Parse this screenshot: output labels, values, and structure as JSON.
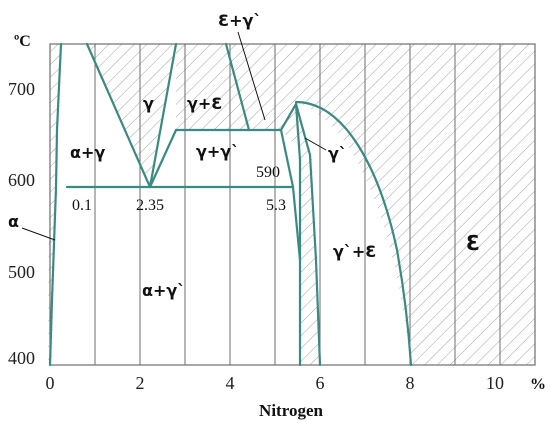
{
  "axes": {
    "y_unit": "ºC",
    "y_ticks": [
      "400",
      "500",
      "600",
      "700"
    ],
    "x_ticks": [
      "0",
      "2",
      "4",
      "6",
      "8",
      "10"
    ],
    "x_unit": "%",
    "x_title": "Nitrogen"
  },
  "phases": {
    "alpha": "α",
    "alpha_gamma": "α+γ",
    "gamma": "γ",
    "gamma_eps": "γ+Ɛ",
    "eps_gammap": "Ɛ+γ`",
    "gamma_gammap": "γ+γ`",
    "gammap": "γ`",
    "alpha_gammap": "α+γ`",
    "gammap_eps": "γ`+Ɛ",
    "eps": "Ɛ"
  },
  "markers": {
    "t590": "590",
    "c01": "0.1",
    "c235": "2.35",
    "c53": "5.3"
  },
  "colors": {
    "boundary": "#3b8a82",
    "grid": "#6e6e6e",
    "hatch": "#9a9a9a"
  }
}
